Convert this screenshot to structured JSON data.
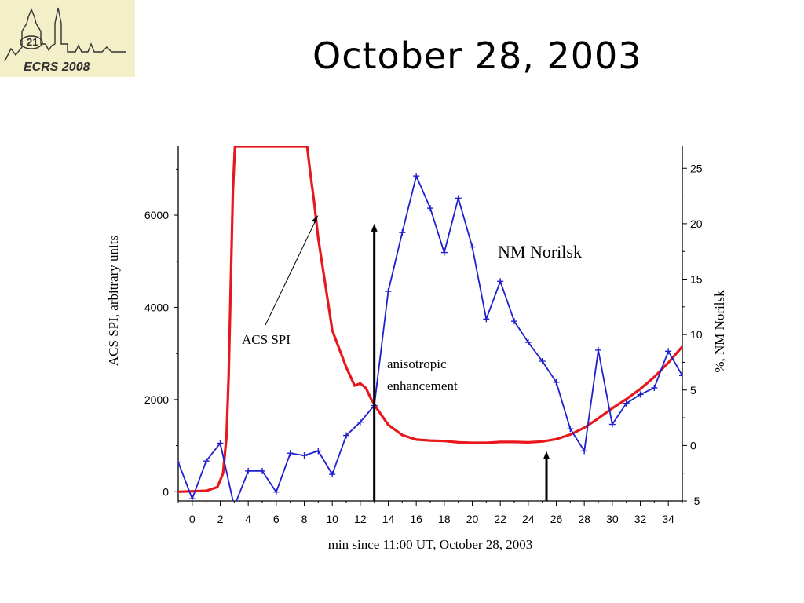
{
  "slide": {
    "title": "October 28, 2003",
    "logo": {
      "number": "21",
      "text": "ECRS 2008"
    }
  },
  "colors": {
    "acs": "#e8171b",
    "nm": "#1f1fcf",
    "axis": "#000000"
  },
  "chart_data": {
    "type": "line",
    "title": "",
    "xlabel": "min since 11:00 UT, October 28, 2003",
    "ylabel_left": "ACS SPI, arbitrary units",
    "ylabel_right": "%, NM Norilsk",
    "xlim": [
      -1,
      35
    ],
    "ylim_left": [
      -200,
      7500
    ],
    "ylim_right": [
      -5,
      27
    ],
    "x_ticks": [
      0,
      2,
      4,
      6,
      8,
      10,
      12,
      14,
      16,
      18,
      20,
      22,
      24,
      26,
      28,
      30,
      32,
      34
    ],
    "y_left_ticks": [
      0,
      2000,
      4000,
      6000
    ],
    "y_right_ticks": [
      -5,
      0,
      5,
      10,
      15,
      20,
      25
    ],
    "grid": false,
    "series": [
      {
        "name": "ACS SPI",
        "axis": "left",
        "x": [
          -1,
          1,
          1.8,
          2.2,
          2.45,
          2.6,
          2.75,
          2.9,
          3.05,
          8.2,
          8.4,
          8.7,
          9.0,
          9.5,
          10.0,
          11.0,
          11.6,
          12.0,
          12.4,
          12.8,
          13.2,
          14,
          15,
          16,
          17,
          18,
          19,
          20,
          21,
          22,
          23,
          24,
          25,
          26,
          27,
          28,
          29,
          30,
          31,
          32,
          33,
          34,
          35
        ],
        "y": [
          0,
          20,
          100,
          400,
          1200,
          2500,
          4500,
          6500,
          7500,
          7500,
          7000,
          6300,
          5500,
          4500,
          3500,
          2700,
          2300,
          2350,
          2250,
          2000,
          1800,
          1450,
          1230,
          1130,
          1110,
          1100,
          1070,
          1060,
          1060,
          1080,
          1080,
          1070,
          1090,
          1140,
          1240,
          1390,
          1590,
          1810,
          2010,
          2230,
          2490,
          2800,
          3150
        ]
      },
      {
        "name": "NM Norilsk",
        "axis": "right",
        "x": [
          -1,
          0,
          1,
          2,
          3,
          4,
          5,
          6,
          7,
          8,
          9,
          10,
          11,
          12,
          13,
          14,
          15,
          16,
          17,
          18,
          19,
          20,
          21,
          22,
          23,
          24,
          25,
          26,
          27,
          28,
          29,
          30,
          31,
          32,
          33,
          34,
          35
        ],
        "y": [
          -1.5,
          -4.8,
          -1.4,
          0.2,
          -5.5,
          -2.3,
          -2.3,
          -4.2,
          -0.7,
          -0.9,
          -0.5,
          -2.6,
          0.9,
          2.1,
          3.6,
          13.9,
          19.2,
          24.3,
          21.4,
          17.4,
          22.3,
          17.9,
          11.4,
          14.8,
          11.2,
          9.3,
          7.6,
          5.7,
          1.5,
          -0.5,
          8.6,
          1.9,
          3.8,
          4.6,
          5.2,
          8.5,
          6.3
        ]
      }
    ],
    "annotations": [
      {
        "id": "acs_label",
        "text": "ACS SPI",
        "points_to": {
          "x": 9.0,
          "y": 6000
        }
      },
      {
        "id": "nm_label",
        "text": "NM Norilsk"
      },
      {
        "id": "aniso_label",
        "text": "anisotropic\nenhancement",
        "lines": [
          "anisotropic",
          "enhancement"
        ]
      }
    ],
    "arrows": [
      {
        "id": "arrow_1",
        "x": 13.0,
        "y_from": -5,
        "y_to": 20.0,
        "axis": "right"
      },
      {
        "id": "arrow_2",
        "x": 25.3,
        "y_from": -5,
        "y_to": -0.5,
        "axis": "right"
      }
    ]
  }
}
